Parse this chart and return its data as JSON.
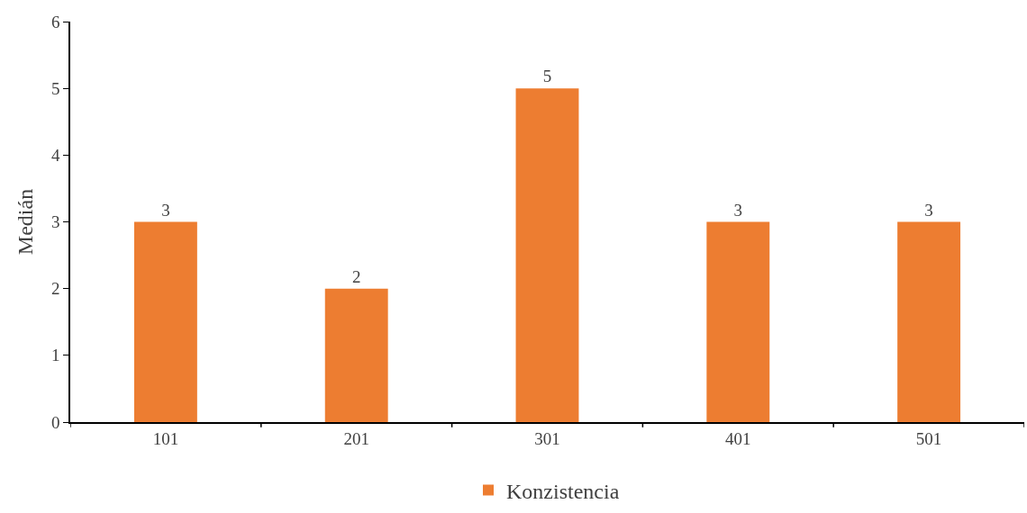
{
  "chart_data": {
    "type": "bar",
    "ylabel": "Medián",
    "categories": [
      "101",
      "201",
      "301",
      "401",
      "501"
    ],
    "series": [
      {
        "name": "Konzistencia",
        "color": "#ed7d31",
        "values": [
          3,
          2,
          5,
          3,
          3
        ]
      }
    ],
    "ylim": [
      0,
      6
    ],
    "yticks": [
      0,
      1,
      2,
      3,
      4,
      5,
      6
    ],
    "grid": false,
    "legend": "bottom",
    "data_labels": true
  }
}
